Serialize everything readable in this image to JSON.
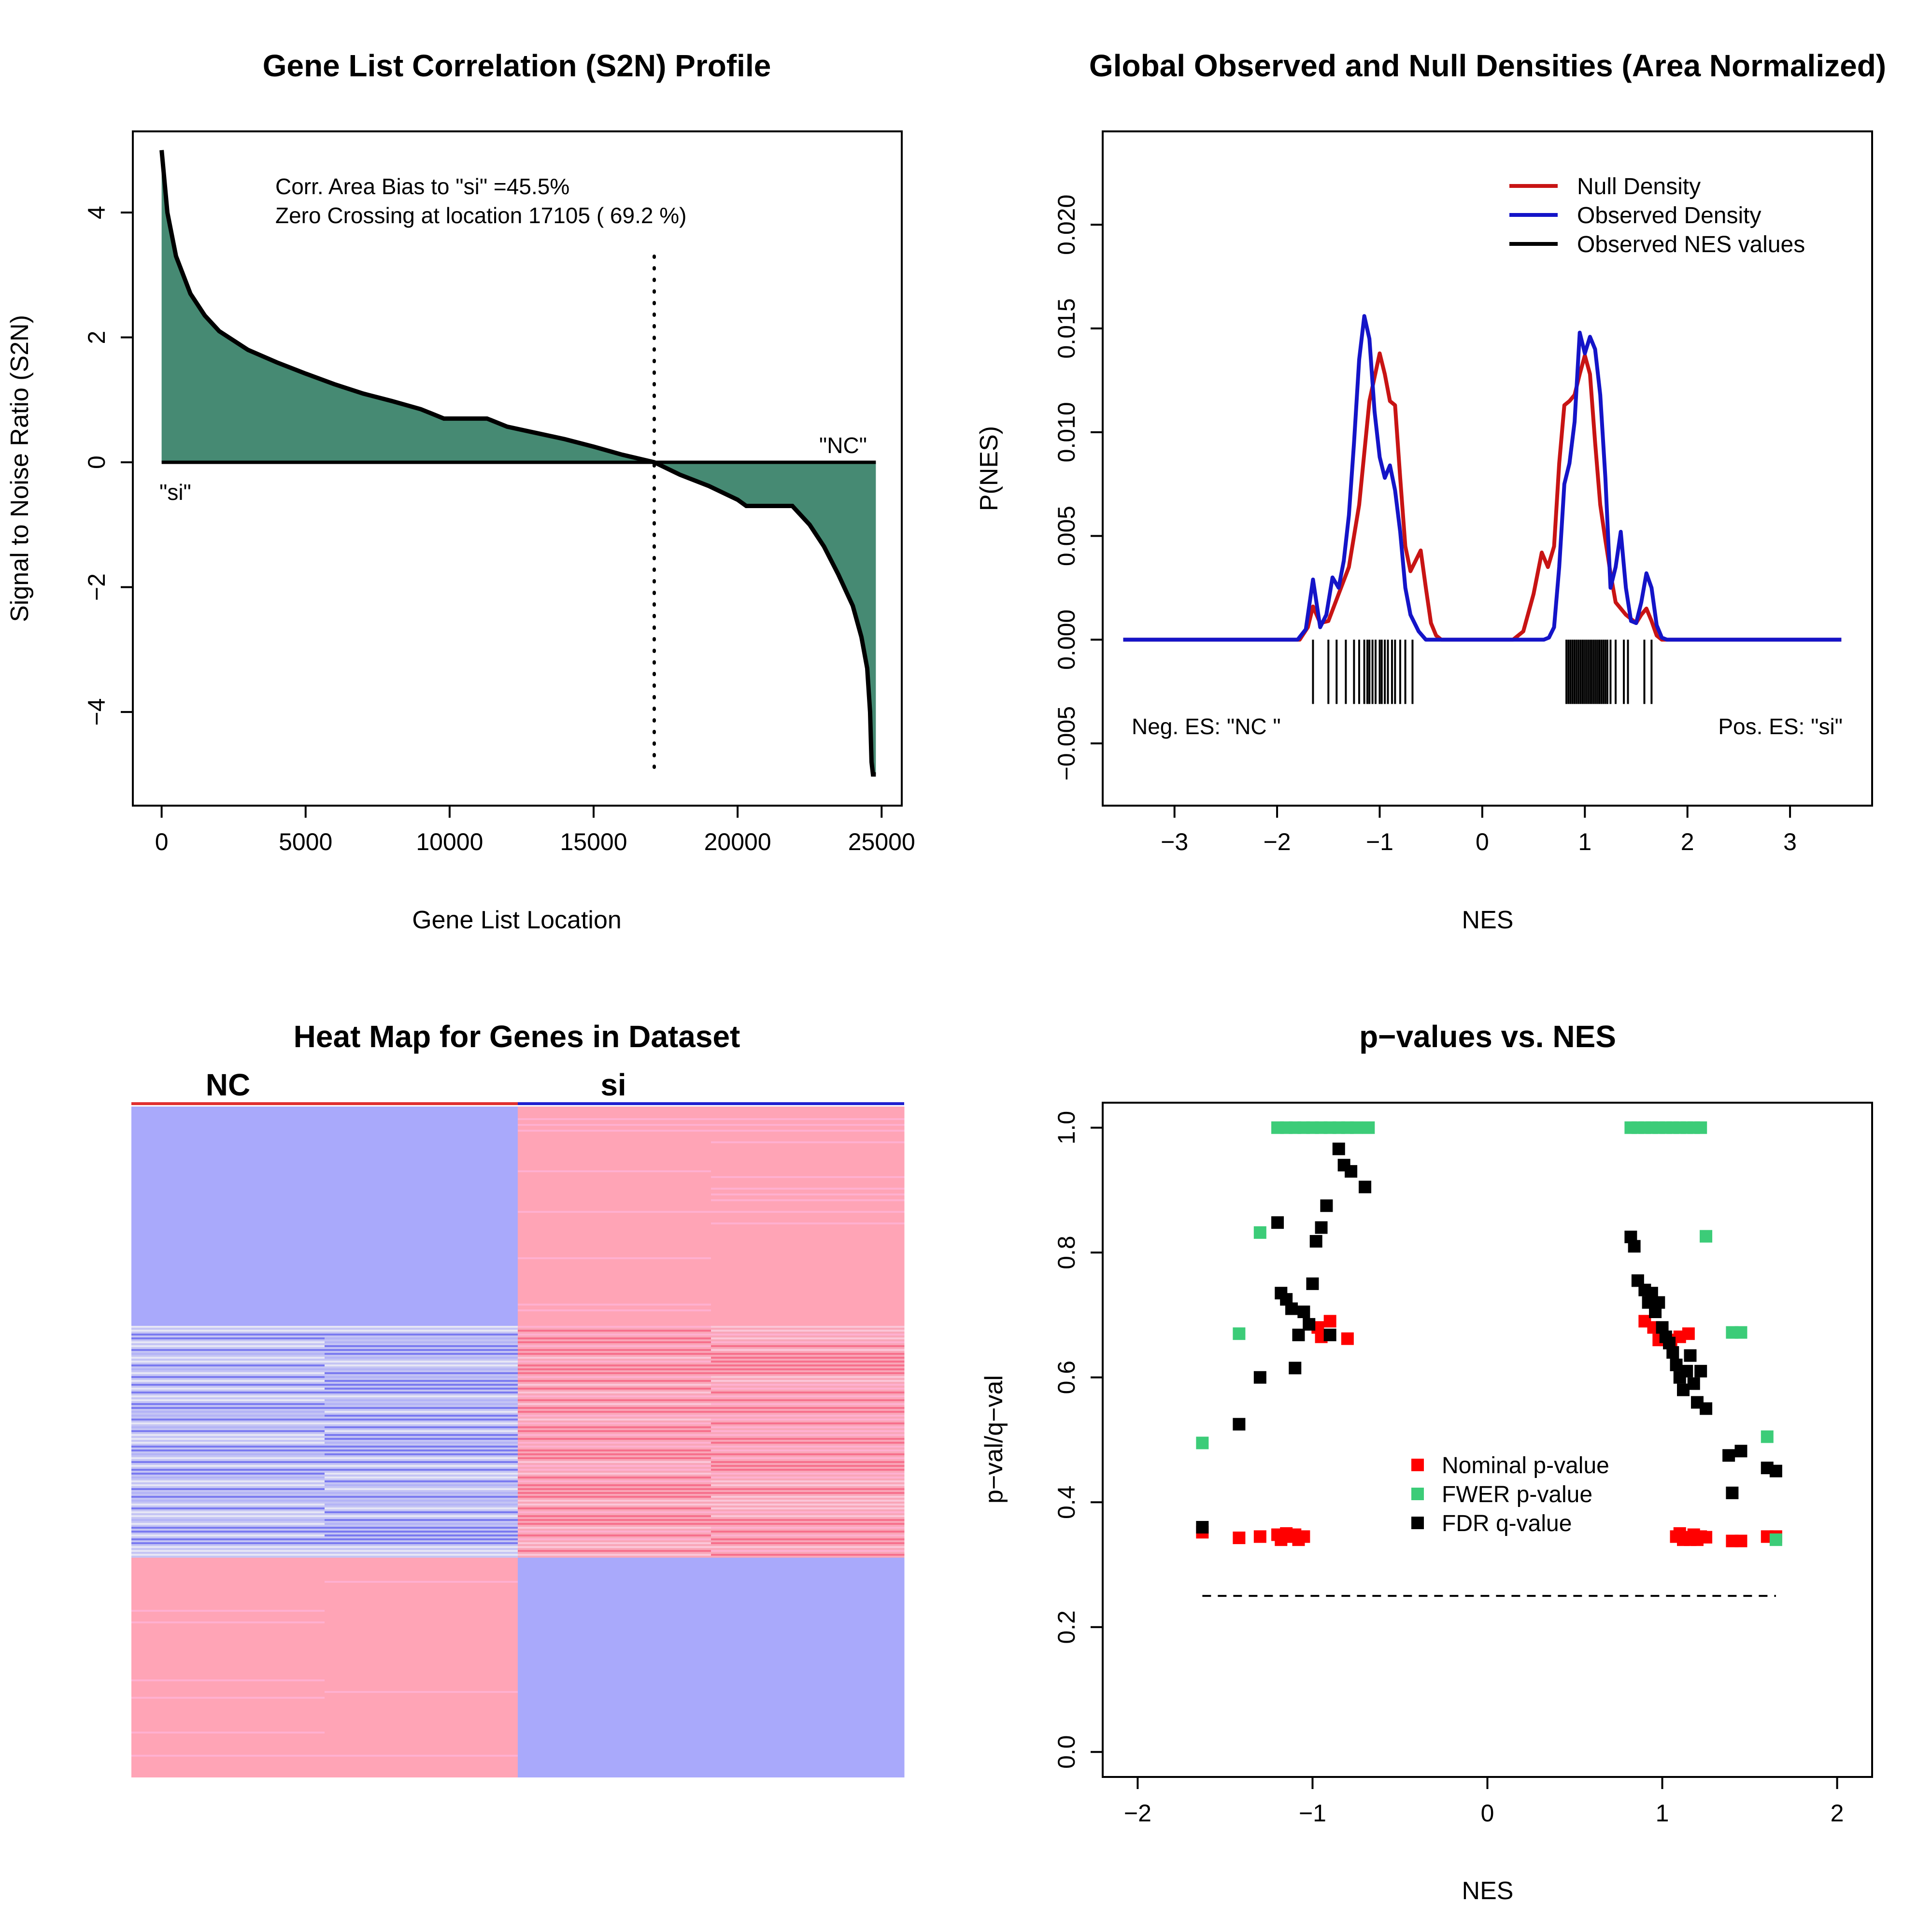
{
  "chart_data": [
    {
      "type": "area",
      "title": "Gene List Correlation (S2N) Profile",
      "xlabel": "Gene List Location",
      "ylabel": "Signal to Noise Ratio (S2N)",
      "xlim": [
        -1000,
        25700
      ],
      "ylim": [
        -5.5,
        5.3
      ],
      "xticks": [
        "0",
        "5000",
        "10000",
        "15000",
        "20000",
        "25000"
      ],
      "yticks": [
        "−4",
        "−2",
        "0",
        "2",
        "4"
      ],
      "fill_color": "#468a73",
      "x": [
        0,
        200,
        500,
        1000,
        1500,
        2000,
        3000,
        4000,
        5000,
        6000,
        7000,
        8000,
        9000,
        9800,
        11300,
        12000,
        13000,
        14000,
        15000,
        16000,
        17105,
        18000,
        19000,
        20000,
        20300,
        21900,
        22500,
        23000,
        23500,
        24000,
        24300,
        24500,
        24600,
        24650,
        24700,
        24800
      ],
      "values": [
        5.0,
        4.0,
        3.3,
        2.7,
        2.35,
        2.1,
        1.8,
        1.6,
        1.42,
        1.25,
        1.1,
        0.98,
        0.85,
        0.7,
        0.7,
        0.57,
        0.47,
        0.37,
        0.25,
        0.12,
        0.0,
        -0.2,
        -0.38,
        -0.6,
        -0.7,
        -0.7,
        -1.0,
        -1.35,
        -1.8,
        -2.3,
        -2.8,
        -3.3,
        -4.0,
        -4.8,
        -5.0,
        -5.0
      ],
      "zero_crossing": 17105,
      "annotations": [
        "Corr. Area Bias to \"si\" =45.5%",
        "Zero Crossing at location  17105  ( 69.2  %)"
      ],
      "pos_label": "\"si\"",
      "neg_label": "\"NC\""
    },
    {
      "type": "line",
      "title": "Global Observed and Null Densities (Area Normalized)",
      "xlabel": "NES",
      "ylabel": "P(NES)",
      "xlim": [
        -3.7,
        3.8
      ],
      "ylim": [
        -0.008,
        0.0245
      ],
      "xticks": [
        "−3",
        "−2",
        "−1",
        "0",
        "1",
        "2",
        "3"
      ],
      "yticks": [
        "−0.005",
        "0.000",
        "0.005",
        "0.010",
        "0.015",
        "0.020"
      ],
      "legend": "top-right",
      "series": [
        {
          "name": "Null Density",
          "color": "#c81414",
          "x": [
            -3.5,
            -2.0,
            -1.78,
            -1.7,
            -1.65,
            -1.58,
            -1.5,
            -1.4,
            -1.3,
            -1.2,
            -1.1,
            -1.0,
            -0.95,
            -0.9,
            -0.85,
            -0.8,
            -0.75,
            -0.7,
            -0.65,
            -0.6,
            -0.55,
            -0.5,
            -0.45,
            -0.4,
            -0.35,
            0.3,
            0.4,
            0.5,
            0.58,
            0.64,
            0.7,
            0.75,
            0.8,
            0.85,
            0.9,
            0.95,
            1.0,
            1.05,
            1.1,
            1.15,
            1.2,
            1.25,
            1.3,
            1.4,
            1.5,
            1.55,
            1.6,
            1.65,
            1.7,
            1.75,
            1.8,
            3.5
          ],
          "values": [
            0,
            0,
            0.0,
            0.0006,
            0.0016,
            0.0008,
            0.0009,
            0.0022,
            0.0035,
            0.0065,
            0.0115,
            0.0138,
            0.0128,
            0.0115,
            0.0113,
            0.0078,
            0.0045,
            0.0033,
            0.0038,
            0.0043,
            0.0025,
            0.0008,
            0.0002,
            0.0,
            0.0,
            0.0,
            0.0004,
            0.0022,
            0.0042,
            0.0035,
            0.0045,
            0.0085,
            0.0113,
            0.0115,
            0.0118,
            0.0128,
            0.0137,
            0.0128,
            0.0095,
            0.0065,
            0.0048,
            0.0032,
            0.0018,
            0.0012,
            0.0008,
            0.0012,
            0.0015,
            0.0009,
            0.0002,
            0.0,
            0.0,
            0
          ]
        },
        {
          "name": "Observed Density",
          "color": "#1414c8",
          "x": [
            -3.5,
            -1.8,
            -1.72,
            -1.65,
            -1.58,
            -1.52,
            -1.46,
            -1.4,
            -1.35,
            -1.3,
            -1.25,
            -1.2,
            -1.15,
            -1.1,
            -1.05,
            -1.0,
            -0.95,
            -0.9,
            -0.85,
            -0.8,
            -0.75,
            -0.7,
            -0.62,
            -0.55,
            -0.5,
            -0.4,
            0.6,
            0.65,
            0.7,
            0.75,
            0.8,
            0.85,
            0.9,
            0.95,
            1.0,
            1.05,
            1.1,
            1.15,
            1.2,
            1.25,
            1.3,
            1.35,
            1.4,
            1.45,
            1.5,
            1.55,
            1.6,
            1.65,
            1.7,
            1.75,
            1.8,
            3.5
          ],
          "values": [
            0,
            0,
            0.0005,
            0.0029,
            0.0006,
            0.0012,
            0.003,
            0.0025,
            0.0038,
            0.006,
            0.0095,
            0.0135,
            0.0156,
            0.0145,
            0.011,
            0.0088,
            0.0078,
            0.0084,
            0.0072,
            0.0052,
            0.0025,
            0.0012,
            0.0004,
            0.0,
            0.0,
            0.0,
            0.0,
            0.0001,
            0.0006,
            0.0035,
            0.0075,
            0.0085,
            0.0105,
            0.0148,
            0.0138,
            0.0146,
            0.014,
            0.0118,
            0.0078,
            0.0025,
            0.0035,
            0.0052,
            0.0025,
            0.0009,
            0.0008,
            0.0018,
            0.0032,
            0.0025,
            0.0007,
            0.0001,
            0.0,
            0
          ]
        },
        {
          "name": "Observed NES values",
          "color": "#000000",
          "rug": [
            -1.65,
            -1.5,
            -1.42,
            -1.33,
            -1.25,
            -1.2,
            -1.15,
            -1.12,
            -1.1,
            -1.07,
            -1.04,
            -1.0,
            -0.98,
            -0.95,
            -0.92,
            -0.88,
            -0.85,
            -0.8,
            -0.75,
            -0.68,
            0.82,
            0.84,
            0.86,
            0.88,
            0.9,
            0.92,
            0.94,
            0.96,
            0.98,
            1.0,
            1.02,
            1.04,
            1.06,
            1.08,
            1.1,
            1.12,
            1.14,
            1.16,
            1.18,
            1.2,
            1.22,
            1.25,
            1.3,
            1.38,
            1.42,
            1.58,
            1.65
          ]
        }
      ],
      "annotations": [
        "Neg. ES: \"NC \"",
        "Pos. ES: \"si\""
      ]
    },
    {
      "type": "heatmap",
      "title": "Heat Map for Genes in Dataset",
      "columns": [
        "NC",
        "NC",
        "si",
        "si"
      ],
      "groups": [
        {
          "label": "NC",
          "color": "#e03030"
        },
        {
          "label": "si",
          "color": "#2020d0"
        }
      ]
    },
    {
      "type": "scatter",
      "title": "p−values vs. NES",
      "xlabel": "NES",
      "ylabel": "p−val/q−val",
      "xlim": [
        -2.2,
        2.2
      ],
      "ylim": [
        -0.04,
        1.04
      ],
      "xticks": [
        "−2",
        "−1",
        "0",
        "1",
        "2"
      ],
      "yticks": [
        "0.0",
        "0.2",
        "0.4",
        "0.6",
        "0.8",
        "1.0"
      ],
      "threshold": 0.25,
      "threshold_range": [
        -1.63,
        1.65
      ],
      "legend": "center",
      "series": [
        {
          "name": "Nominal p-value",
          "color": "#ff0000",
          "x": [
            -1.63,
            -1.42,
            -1.3,
            -1.2,
            -1.18,
            -1.15,
            -1.12,
            -1.1,
            -1.08,
            -1.05,
            -0.97,
            -0.95,
            -0.9,
            -0.8,
            0.9,
            0.95,
            0.98,
            1.0,
            1.02,
            1.05,
            1.1,
            1.15,
            1.08,
            1.1,
            1.12,
            1.14,
            1.16,
            1.18,
            1.2,
            1.22,
            1.25,
            1.4,
            1.45,
            1.6,
            1.65
          ],
          "values": [
            0.352,
            0.343,
            0.345,
            0.348,
            0.34,
            0.35,
            0.345,
            0.348,
            0.34,
            0.345,
            0.68,
            0.665,
            0.69,
            0.662,
            0.69,
            0.68,
            0.66,
            0.672,
            0.66,
            0.66,
            0.665,
            0.67,
            0.345,
            0.35,
            0.34,
            0.344,
            0.34,
            0.348,
            0.34,
            0.345,
            0.344,
            0.338,
            0.338,
            0.345,
            0.345
          ]
        },
        {
          "name": "FWER p-value",
          "color": "#3ccc78",
          "x": [
            -1.63,
            -1.42,
            -1.3,
            -1.2,
            -1.15,
            -1.1,
            -1.05,
            -1.0,
            -0.95,
            -0.9,
            -0.85,
            -0.8,
            -0.75,
            -0.68,
            0.82,
            0.86,
            0.9,
            0.94,
            0.98,
            1.02,
            1.06,
            1.1,
            1.14,
            1.18,
            1.22,
            1.25,
            1.4,
            1.45,
            1.6,
            1.65
          ],
          "values": [
            0.495,
            0.67,
            0.832,
            1.0,
            1.0,
            1.0,
            1.0,
            1.0,
            1.0,
            1.0,
            1.0,
            1.0,
            1.0,
            1.0,
            1.0,
            1.0,
            1.0,
            1.0,
            1.0,
            1.0,
            1.0,
            1.0,
            1.0,
            1.0,
            1.0,
            0.826,
            0.672,
            0.672,
            0.505,
            0.34
          ]
        },
        {
          "name": "FDR q-value",
          "color": "#000000",
          "x": [
            -1.63,
            -1.42,
            -1.3,
            -1.2,
            -1.18,
            -1.15,
            -1.12,
            -1.1,
            -1.08,
            -1.05,
            -1.02,
            -1.0,
            -0.98,
            -0.95,
            -0.92,
            -0.9,
            -0.85,
            -0.82,
            -0.78,
            -0.7,
            0.82,
            0.84,
            0.86,
            0.9,
            0.92,
            0.94,
            0.96,
            0.98,
            1.0,
            1.02,
            1.04,
            1.06,
            1.08,
            1.1,
            1.12,
            1.14,
            1.16,
            1.18,
            1.2,
            1.22,
            1.25,
            1.38,
            1.4,
            1.45,
            1.6,
            1.65
          ],
          "values": [
            0.36,
            0.525,
            0.6,
            0.848,
            0.735,
            0.725,
            0.71,
            0.615,
            0.668,
            0.705,
            0.685,
            0.75,
            0.818,
            0.84,
            0.875,
            0.668,
            0.966,
            0.94,
            0.93,
            0.905,
            0.825,
            0.81,
            0.755,
            0.74,
            0.72,
            0.735,
            0.705,
            0.72,
            0.68,
            0.665,
            0.655,
            0.64,
            0.62,
            0.6,
            0.58,
            0.61,
            0.635,
            0.59,
            0.56,
            0.61,
            0.55,
            0.475,
            0.415,
            0.482,
            0.455,
            0.45
          ]
        }
      ]
    }
  ]
}
